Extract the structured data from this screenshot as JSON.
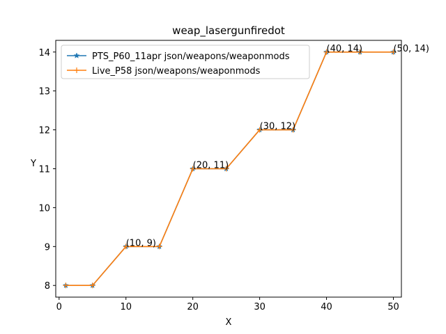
{
  "chart_data": {
    "type": "line",
    "title": "weap_lasergunfiredot",
    "xlabel": "X",
    "ylabel": "Y",
    "xlim": [
      -0.5,
      51.2
    ],
    "ylim": [
      7.7,
      14.3
    ],
    "xticks": [
      0,
      10,
      20,
      30,
      40,
      50
    ],
    "yticks": [
      8,
      9,
      10,
      11,
      12,
      13,
      14
    ],
    "legend_position": "top-left",
    "grid": false,
    "series": [
      {
        "name": "PTS_P60_11apr json/weapons/weaponmods",
        "color": "#1f77b4",
        "marker": "star",
        "x": [
          1,
          5,
          10,
          15,
          20,
          25,
          30,
          35,
          40,
          45,
          50
        ],
        "y": [
          8,
          8,
          9,
          9,
          11,
          11,
          12,
          12,
          14,
          14,
          14
        ]
      },
      {
        "name": "Live_P58 json/weapons/weaponmods",
        "color": "#ff7f0e",
        "marker": "plus",
        "x": [
          1,
          5,
          10,
          15,
          20,
          25,
          30,
          35,
          40,
          45,
          50
        ],
        "y": [
          8,
          8,
          9,
          9,
          11,
          11,
          12,
          12,
          14,
          14,
          14
        ]
      }
    ],
    "annotations": [
      {
        "x": 10,
        "y": 9,
        "text": "(10, 9)"
      },
      {
        "x": 20,
        "y": 11,
        "text": "(20, 11)"
      },
      {
        "x": 30,
        "y": 12,
        "text": "(30, 12)"
      },
      {
        "x": 40,
        "y": 14,
        "text": "(40, 14)"
      },
      {
        "x": 50,
        "y": 14,
        "text": "(50, 14)"
      }
    ]
  }
}
